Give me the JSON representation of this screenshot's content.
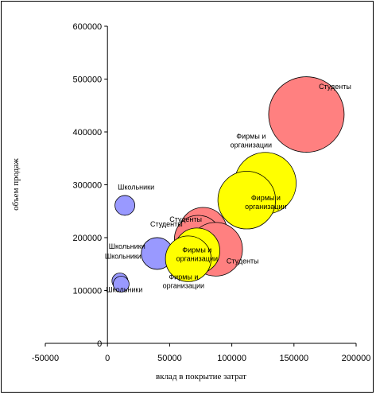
{
  "chart_data": {
    "type": "bubble",
    "xlabel": "вклад в покрытие затрат",
    "ylabel": "объем продаж",
    "xlim": [
      -50000,
      200000
    ],
    "ylim": [
      0,
      600000
    ],
    "xticks": [
      "-50000",
      "0",
      "50000",
      "100000",
      "150000",
      "200000"
    ],
    "yticks": [
      "0",
      "100000",
      "200000",
      "300000",
      "400000",
      "500000",
      "600000"
    ],
    "grid": false,
    "legend": "none",
    "series": [
      {
        "color": "#9999ff",
        "points": [
          {
            "x": 14000,
            "y": 261000,
            "size": 1.0,
            "label": "Школьники"
          },
          {
            "x": 40000,
            "y": 170000,
            "size": 1.6,
            "label": "Школьники"
          },
          {
            "x": 10000,
            "y": 118000,
            "size": 0.8,
            "label": "Школьники"
          },
          {
            "x": 11000,
            "y": 112000,
            "size": 0.8,
            "label": "Школьники"
          }
        ]
      },
      {
        "color": "#ff8080",
        "points": [
          {
            "x": 160000,
            "y": 433000,
            "size": 3.8,
            "label": "Студенты"
          },
          {
            "x": 77000,
            "y": 212000,
            "size": 2.4,
            "label": "Студенты"
          },
          {
            "x": 73000,
            "y": 197000,
            "size": 2.4,
            "label": "Студенты"
          },
          {
            "x": 87000,
            "y": 178000,
            "size": 2.7,
            "label": "Студенты"
          }
        ]
      },
      {
        "color": "#ffff00",
        "points": [
          {
            "x": 127000,
            "y": 303000,
            "size": 3.1,
            "label": "Фирмы и организации"
          },
          {
            "x": 112000,
            "y": 271000,
            "size": 2.9,
            "label": "Фирмы и организации"
          },
          {
            "x": 72000,
            "y": 175000,
            "size": 2.3,
            "label": "Фирмы и организации"
          },
          {
            "x": 65000,
            "y": 160000,
            "size": 2.3,
            "label": "Фирмы и организации"
          }
        ]
      }
    ]
  }
}
